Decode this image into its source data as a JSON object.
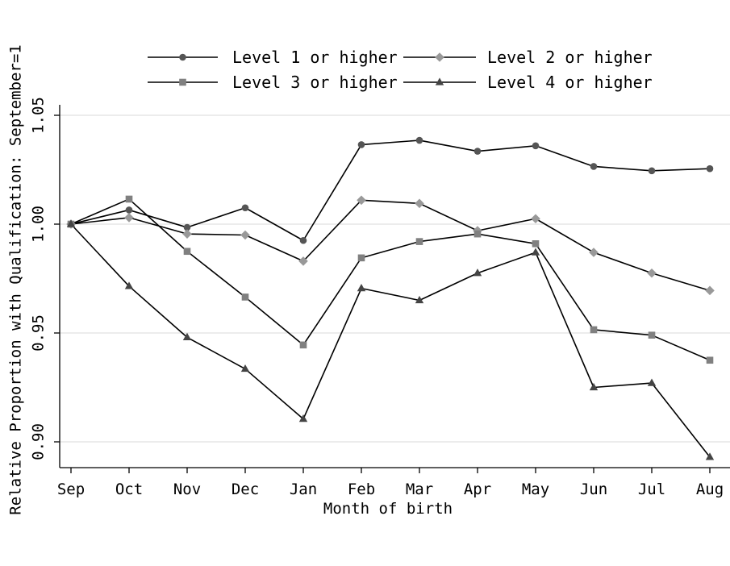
{
  "chart_data": {
    "type": "line",
    "title": "",
    "xlabel": "Month of birth",
    "ylabel": "Relative Proportion with Qualification: September=1",
    "categories": [
      "Sep",
      "Oct",
      "Nov",
      "Dec",
      "Jan",
      "Feb",
      "Mar",
      "Apr",
      "May",
      "Jun",
      "Jul",
      "Aug"
    ],
    "ylim": [
      0.88,
      1.05
    ],
    "yticks": [
      0.9,
      0.95,
      1.0,
      1.05
    ],
    "ytick_labels": [
      "0.90",
      "0.95",
      "1.00",
      "1.05"
    ],
    "grid": "horizontal",
    "legend_position": "top",
    "series": [
      {
        "name": "Level 1 or higher",
        "marker": "circle",
        "color": "#555555",
        "values": [
          1.0,
          1.0065,
          0.9985,
          1.0075,
          0.9925,
          1.0365,
          1.0385,
          1.0335,
          1.036,
          1.0265,
          1.0245,
          1.0255
        ]
      },
      {
        "name": "Level 2 or higher",
        "marker": "diamond",
        "color": "#999999",
        "values": [
          1.0,
          1.003,
          0.9955,
          0.995,
          0.983,
          1.011,
          1.0095,
          0.997,
          1.0025,
          0.987,
          0.9775,
          0.9695
        ]
      },
      {
        "name": "Level 3 or higher",
        "marker": "square",
        "color": "#808080",
        "values": [
          1.0,
          1.0115,
          0.9875,
          0.9665,
          0.9445,
          0.9845,
          0.992,
          0.9955,
          0.991,
          0.9515,
          0.949,
          0.9375
        ]
      },
      {
        "name": "Level 4 or higher",
        "marker": "triangle",
        "color": "#444444",
        "values": [
          1.0,
          0.9715,
          0.948,
          0.9335,
          0.9105,
          0.9705,
          0.965,
          0.9775,
          0.987,
          0.925,
          0.927,
          0.893
        ]
      }
    ]
  }
}
